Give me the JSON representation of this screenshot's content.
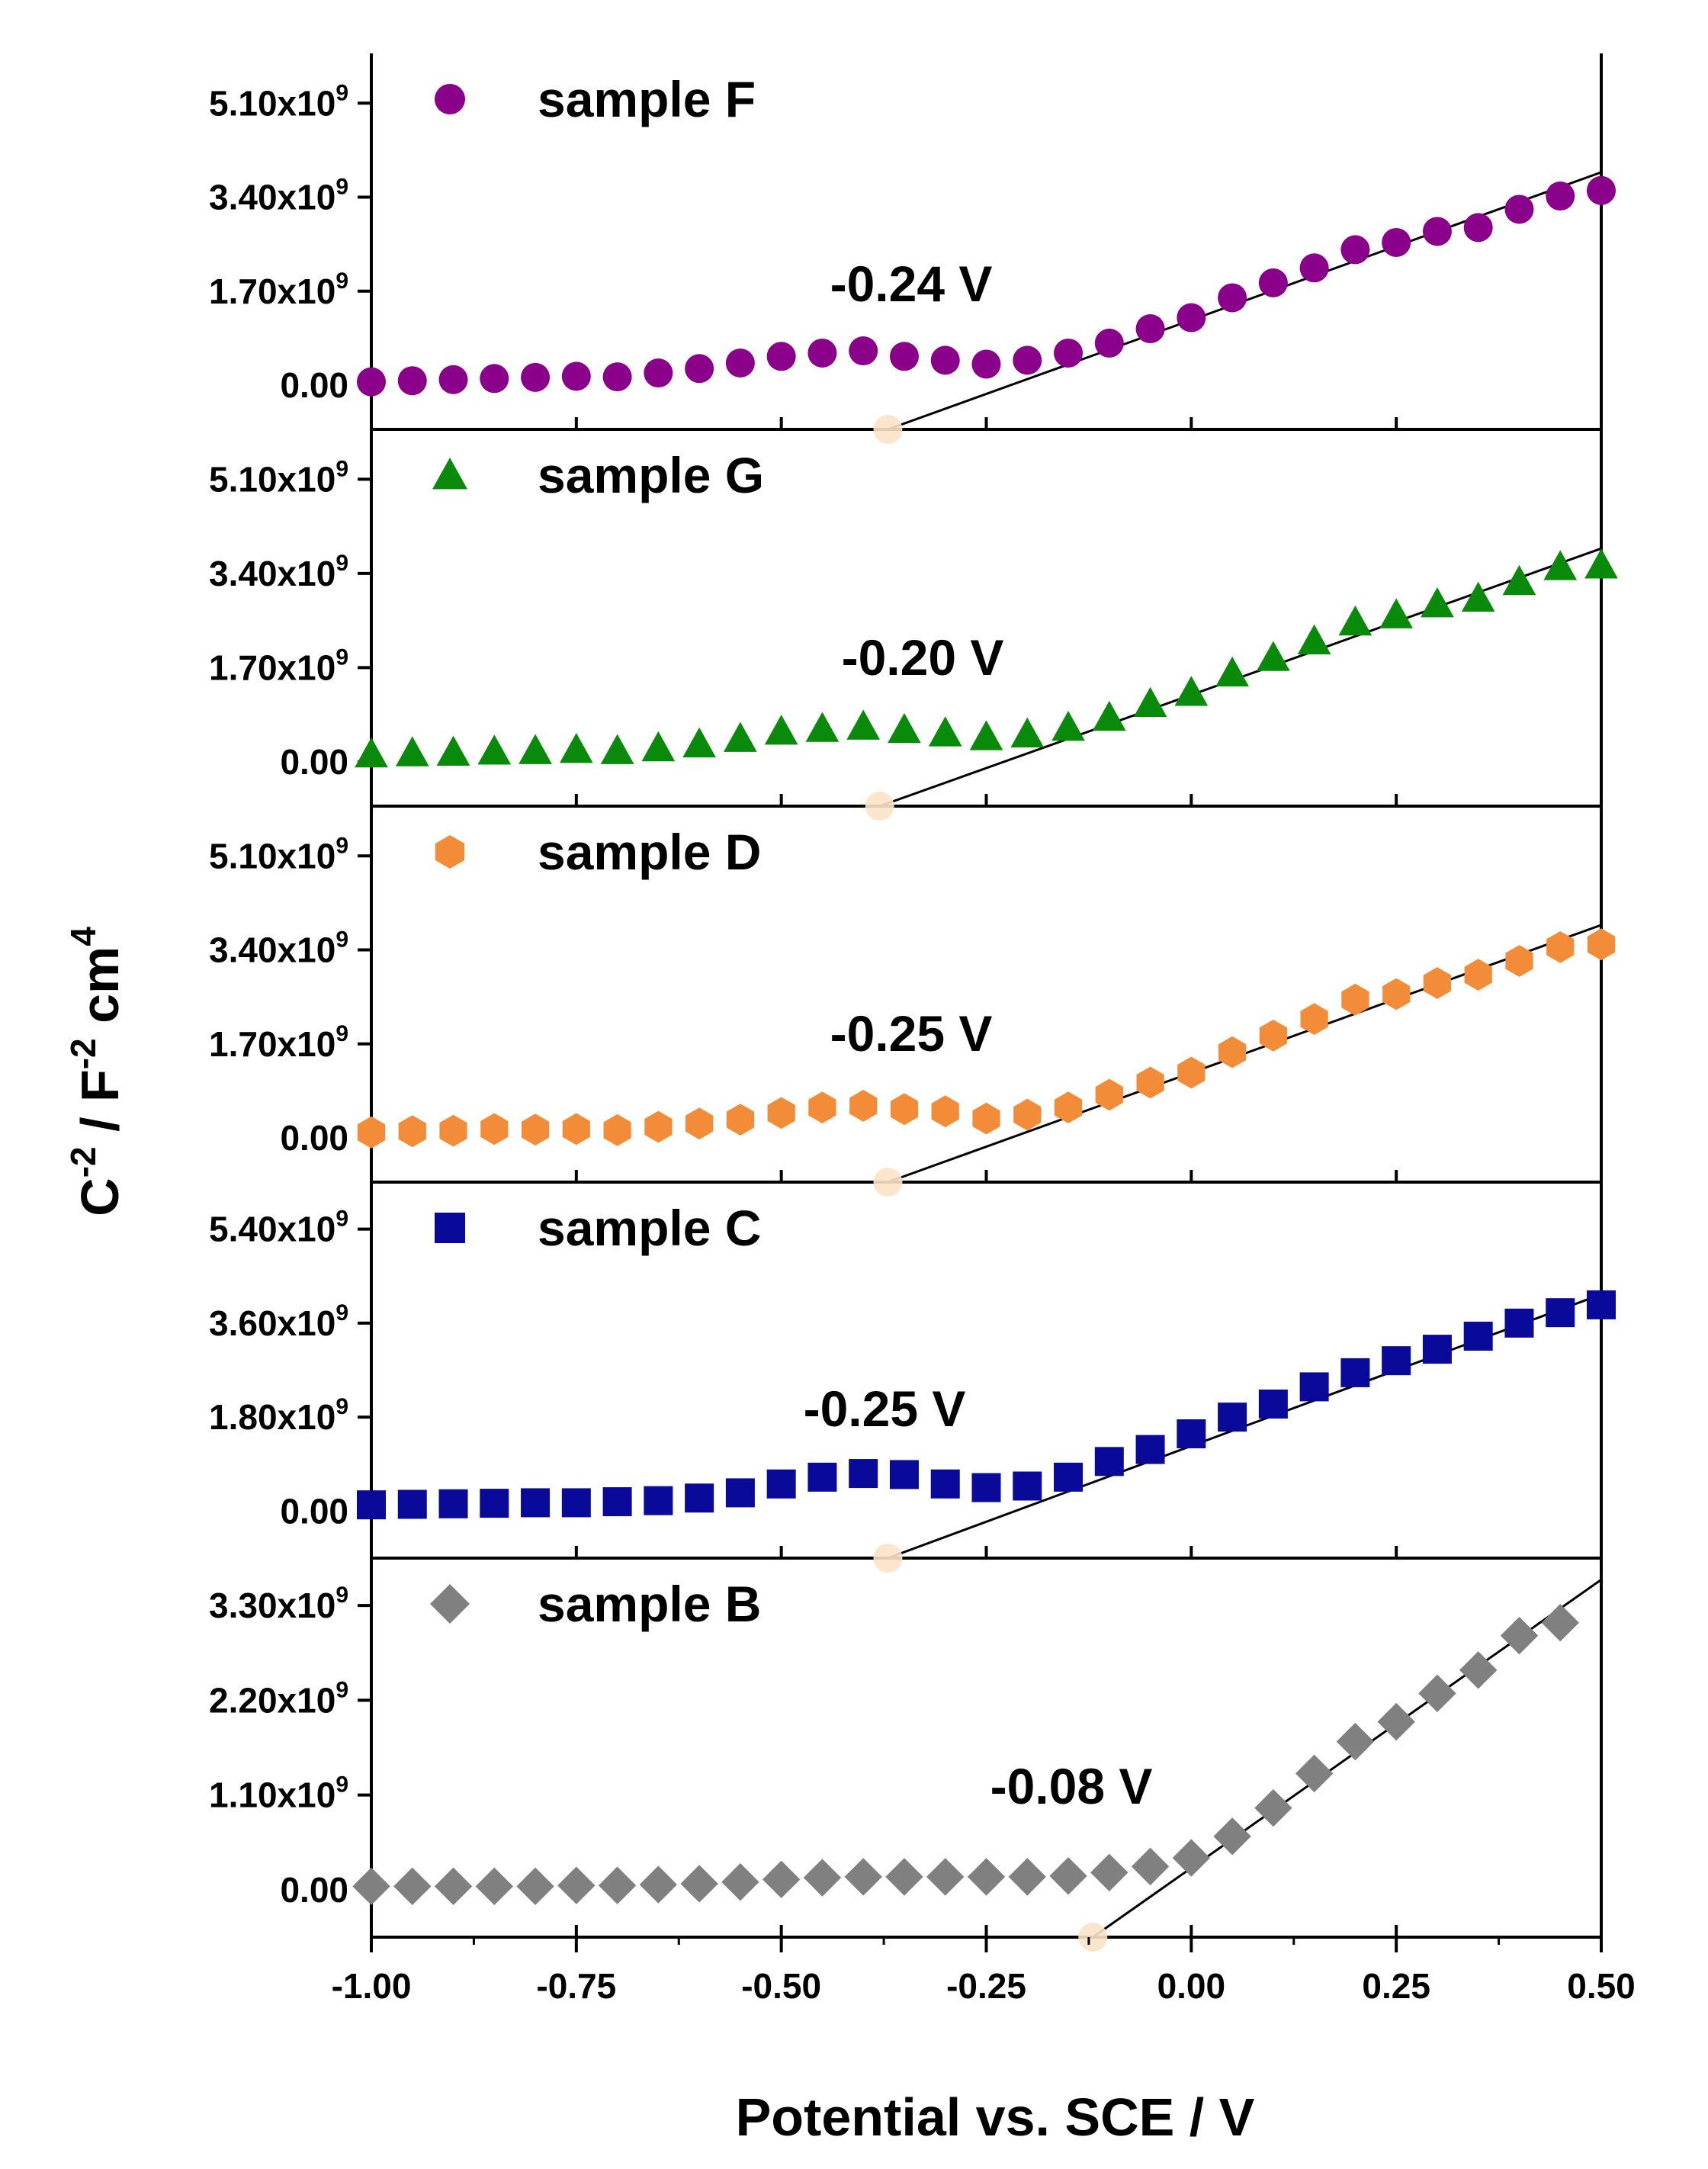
{
  "chart_data": {
    "type": "scatter",
    "xlabel": "Potential vs. SCE / V",
    "ylabel_base": "C",
    "ylabel_exp1": "-2",
    "ylabel_mid": " / F",
    "ylabel_exp2": "-2",
    "ylabel_unit": " cm",
    "ylabel_exp3": "4",
    "xlim": [
      -1.0,
      0.5
    ],
    "xticks": [
      -1.0,
      -0.75,
      -0.5,
      -0.25,
      0.0,
      0.25,
      0.5
    ],
    "xtick_labels": [
      "-1.00",
      "-0.75",
      "-0.50",
      "-0.25",
      "0.00",
      "0.25",
      "0.50"
    ],
    "panels": [
      {
        "name": "sample F",
        "marker": "circle",
        "color": "#8B008B",
        "ylim": [
          -800000000.0,
          6000000000.0
        ],
        "yticks": [
          0,
          1700000000.0,
          3400000000.0,
          5100000000.0
        ],
        "ytick_mantissas": [
          "0.00",
          "1.70",
          "3.40",
          "5.10"
        ],
        "intercept": -0.37,
        "fit_end": [
          0.5,
          3850000000.0
        ],
        "annotation": "-0.24 V",
        "x": [
          -1.0,
          -0.95,
          -0.9,
          -0.85,
          -0.8,
          -0.75,
          -0.7,
          -0.65,
          -0.6,
          -0.55,
          -0.5,
          -0.45,
          -0.4,
          -0.35,
          -0.3,
          -0.25,
          -0.2,
          -0.15,
          -0.1,
          -0.05,
          0.0,
          0.05,
          0.1,
          0.15,
          0.2,
          0.25,
          0.3,
          0.35,
          0.4,
          0.45,
          0.5
        ],
        "y": [
          60000000.0,
          80000000.0,
          100000000.0,
          120000000.0,
          140000000.0,
          160000000.0,
          150000000.0,
          220000000.0,
          300000000.0,
          400000000.0,
          520000000.0,
          580000000.0,
          620000000.0,
          520000000.0,
          450000000.0,
          380000000.0,
          450000000.0,
          580000000.0,
          760000000.0,
          1020000000.0,
          1220000000.0,
          1580000000.0,
          1850000000.0,
          2120000000.0,
          2450000000.0,
          2580000000.0,
          2780000000.0,
          2850000000.0,
          3180000000.0,
          3420000000.0,
          3520000000.0
        ]
      },
      {
        "name": "sample G",
        "marker": "triangle",
        "color": "#0A8A0A",
        "ylim": [
          -800000000.0,
          6000000000.0
        ],
        "yticks": [
          0,
          1700000000.0,
          3400000000.0,
          5100000000.0
        ],
        "ytick_mantissas": [
          "0.00",
          "1.70",
          "3.40",
          "5.10"
        ],
        "intercept": -0.38,
        "fit_end": [
          0.5,
          3850000000.0
        ],
        "annotation": "-0.20 V",
        "x": [
          -1.0,
          -0.95,
          -0.9,
          -0.85,
          -0.8,
          -0.75,
          -0.7,
          -0.65,
          -0.6,
          -0.55,
          -0.5,
          -0.45,
          -0.4,
          -0.35,
          -0.3,
          -0.25,
          -0.2,
          -0.15,
          -0.1,
          -0.05,
          0.0,
          0.05,
          0.1,
          0.15,
          0.2,
          0.25,
          0.3,
          0.35,
          0.4,
          0.45,
          0.5
        ],
        "y": [
          140000000.0,
          160000000.0,
          170000000.0,
          190000000.0,
          200000000.0,
          220000000.0,
          200000000.0,
          250000000.0,
          320000000.0,
          420000000.0,
          550000000.0,
          600000000.0,
          640000000.0,
          580000000.0,
          520000000.0,
          450000000.0,
          500000000.0,
          620000000.0,
          800000000.0,
          1050000000.0,
          1250000000.0,
          1600000000.0,
          1880000000.0,
          2180000000.0,
          2520000000.0,
          2650000000.0,
          2850000000.0,
          2950000000.0,
          3250000000.0,
          3520000000.0,
          3550000000.0
        ]
      },
      {
        "name": "sample D",
        "marker": "hexagon",
        "color": "#F28C38",
        "ylim": [
          -800000000.0,
          6000000000.0
        ],
        "yticks": [
          0,
          1700000000.0,
          3400000000.0,
          5100000000.0
        ],
        "ytick_mantissas": [
          "0.00",
          "1.70",
          "3.40",
          "5.10"
        ],
        "intercept": -0.37,
        "fit_end": [
          0.5,
          3850000000.0
        ],
        "annotation": "-0.25 V",
        "x": [
          -1.0,
          -0.95,
          -0.9,
          -0.85,
          -0.8,
          -0.75,
          -0.7,
          -0.65,
          -0.6,
          -0.55,
          -0.5,
          -0.45,
          -0.4,
          -0.35,
          -0.3,
          -0.25,
          -0.2,
          -0.15,
          -0.1,
          -0.05,
          0.0,
          0.05,
          0.1,
          0.15,
          0.2,
          0.25,
          0.3,
          0.35,
          0.4,
          0.45,
          0.5
        ],
        "y": [
          100000000.0,
          120000000.0,
          130000000.0,
          160000000.0,
          150000000.0,
          160000000.0,
          140000000.0,
          200000000.0,
          260000000.0,
          330000000.0,
          450000000.0,
          550000000.0,
          580000000.0,
          520000000.0,
          480000000.0,
          350000000.0,
          420000000.0,
          550000000.0,
          780000000.0,
          1000000000.0,
          1180000000.0,
          1550000000.0,
          1850000000.0,
          2150000000.0,
          2500000000.0,
          2600000000.0,
          2800000000.0,
          2950000000.0,
          3200000000.0,
          3450000000.0,
          3500000000.0
        ]
      },
      {
        "name": "sample C",
        "marker": "square",
        "color": "#0A0A9A",
        "ylim": [
          -900000000.0,
          6300000000.0
        ],
        "yticks": [
          0,
          1800000000.0,
          3600000000.0,
          5400000000.0
        ],
        "ytick_mantissas": [
          "0.00",
          "1.80",
          "3.60",
          "5.40"
        ],
        "intercept": -0.37,
        "fit_end": [
          0.5,
          4150000000.0
        ],
        "annotation": "-0.25 V",
        "x": [
          -1.0,
          -0.95,
          -0.9,
          -0.85,
          -0.8,
          -0.75,
          -0.7,
          -0.65,
          -0.6,
          -0.55,
          -0.5,
          -0.45,
          -0.4,
          -0.35,
          -0.3,
          -0.25,
          -0.2,
          -0.15,
          -0.1,
          -0.05,
          0.0,
          0.05,
          0.1,
          0.15,
          0.2,
          0.25,
          0.3,
          0.35,
          0.4,
          0.45,
          0.5
        ],
        "y": [
          120000000.0,
          130000000.0,
          140000000.0,
          150000000.0,
          160000000.0,
          160000000.0,
          180000000.0,
          200000000.0,
          250000000.0,
          350000000.0,
          520000000.0,
          650000000.0,
          720000000.0,
          700000000.0,
          520000000.0,
          450000000.0,
          480000000.0,
          650000000.0,
          950000000.0,
          1180000000.0,
          1480000000.0,
          1800000000.0,
          2050000000.0,
          2380000000.0,
          2650000000.0,
          2880000000.0,
          3100000000.0,
          3350000000.0,
          3600000000.0,
          3800000000.0,
          3950000000.0
        ]
      },
      {
        "name": "sample B",
        "marker": "diamond",
        "color": "#808080",
        "ylim": [
          -550000000.0,
          3850000000.0
        ],
        "yticks": [
          0,
          1100000000.0,
          2200000000.0,
          3300000000.0
        ],
        "ytick_mantissas": [
          "0.00",
          "1.10",
          "2.20",
          "3.30"
        ],
        "intercept": -0.12,
        "fit_end": [
          0.5,
          3600000000.0
        ],
        "annotation": "-0.08 V",
        "x": [
          -1.0,
          -0.95,
          -0.9,
          -0.85,
          -0.8,
          -0.75,
          -0.7,
          -0.65,
          -0.6,
          -0.55,
          -0.5,
          -0.45,
          -0.4,
          -0.35,
          -0.3,
          -0.25,
          -0.2,
          -0.15,
          -0.1,
          -0.05,
          0.0,
          0.05,
          0.1,
          0.15,
          0.2,
          0.25,
          0.3,
          0.35,
          0.4,
          0.45
        ],
        "y": [
          40000000.0,
          40000000.0,
          40000000.0,
          40000000.0,
          40000000.0,
          50000000.0,
          50000000.0,
          60000000.0,
          70000000.0,
          90000000.0,
          120000000.0,
          140000000.0,
          150000000.0,
          150000000.0,
          150000000.0,
          150000000.0,
          150000000.0,
          160000000.0,
          200000000.0,
          270000000.0,
          370000000.0,
          620000000.0,
          950000000.0,
          1350000000.0,
          1720000000.0,
          1950000000.0,
          2280000000.0,
          2550000000.0,
          2950000000.0,
          3100000000.0
        ]
      }
    ]
  }
}
